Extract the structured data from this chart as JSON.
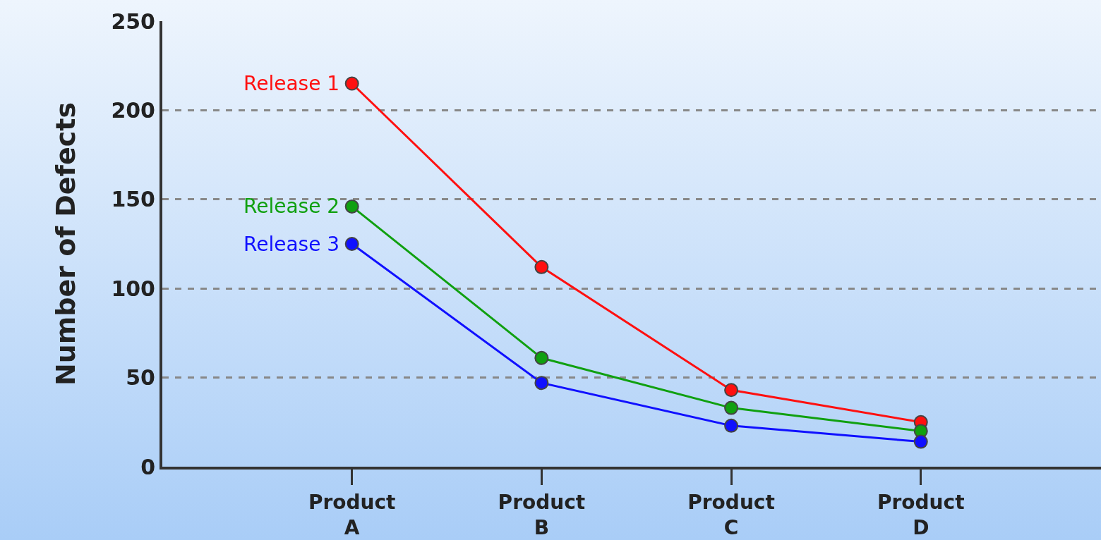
{
  "chart_data": {
    "type": "line",
    "ylabel": "Number of Defects",
    "categories": [
      "Product A",
      "Product B",
      "Product C",
      "Product D"
    ],
    "series": [
      {
        "name": "Release 1",
        "color": "#ff1010",
        "values": [
          215,
          112,
          43,
          25
        ]
      },
      {
        "name": "Release 2",
        "color": "#10a010",
        "values": [
          146,
          61,
          33,
          20
        ]
      },
      {
        "name": "Release 3",
        "color": "#1010ff",
        "values": [
          125,
          47,
          23,
          14
        ]
      }
    ],
    "ylim": [
      0,
      250
    ],
    "yticks": [
      0,
      50,
      100,
      150,
      200,
      250
    ],
    "grid": "y",
    "legend": false,
    "marker": "circle",
    "line_style": "solid"
  }
}
